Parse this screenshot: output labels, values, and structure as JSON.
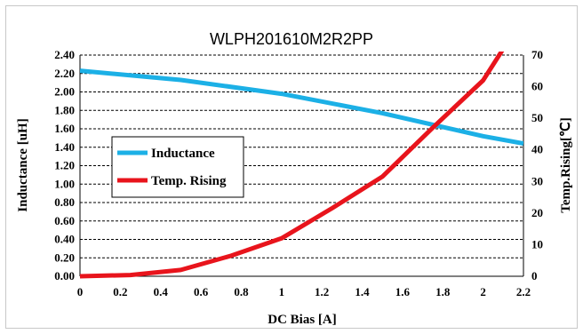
{
  "chart_data": {
    "type": "line",
    "title": "WLPH201610M2R2PP",
    "xlabel": "DC Bias [A]",
    "ylabel_left": "Inductance [uH]",
    "ylabel_right": "Temp.Rising[℃]",
    "xlim": [
      0,
      2.2
    ],
    "ylim_left": [
      0,
      2.4
    ],
    "ylim_right": [
      0,
      70
    ],
    "x_ticks": [
      "0",
      "0.2",
      "0.4",
      "0.6",
      "0.8",
      "1",
      "1.2",
      "1.4",
      "1.6",
      "1.8",
      "2",
      "2.2"
    ],
    "y_left_ticks": [
      "0.00",
      "0.20",
      "0.40",
      "0.60",
      "0.80",
      "1.00",
      "1.20",
      "1.40",
      "1.60",
      "1.80",
      "2.00",
      "2.20",
      "2.40"
    ],
    "y_right_ticks": [
      "0",
      "10",
      "20",
      "30",
      "40",
      "50",
      "60",
      "70"
    ],
    "grid": "horizontal dashed",
    "legend_position": "left",
    "series": [
      {
        "name": "Inductance",
        "axis": "left",
        "color": "#1cb0e6",
        "x": [
          0,
          0.5,
          1.0,
          1.5,
          2.0,
          2.2
        ],
        "y": [
          2.23,
          2.13,
          1.98,
          1.77,
          1.52,
          1.44
        ]
      },
      {
        "name": "Temp. Rising",
        "axis": "right",
        "color": "#e8141c",
        "x": [
          0,
          0.25,
          0.5,
          0.75,
          1.0,
          1.25,
          1.5,
          1.75,
          2.0,
          2.1
        ],
        "y": [
          0,
          0.4,
          2,
          6.5,
          12,
          21.5,
          31.5,
          47,
          62,
          72
        ]
      }
    ]
  }
}
